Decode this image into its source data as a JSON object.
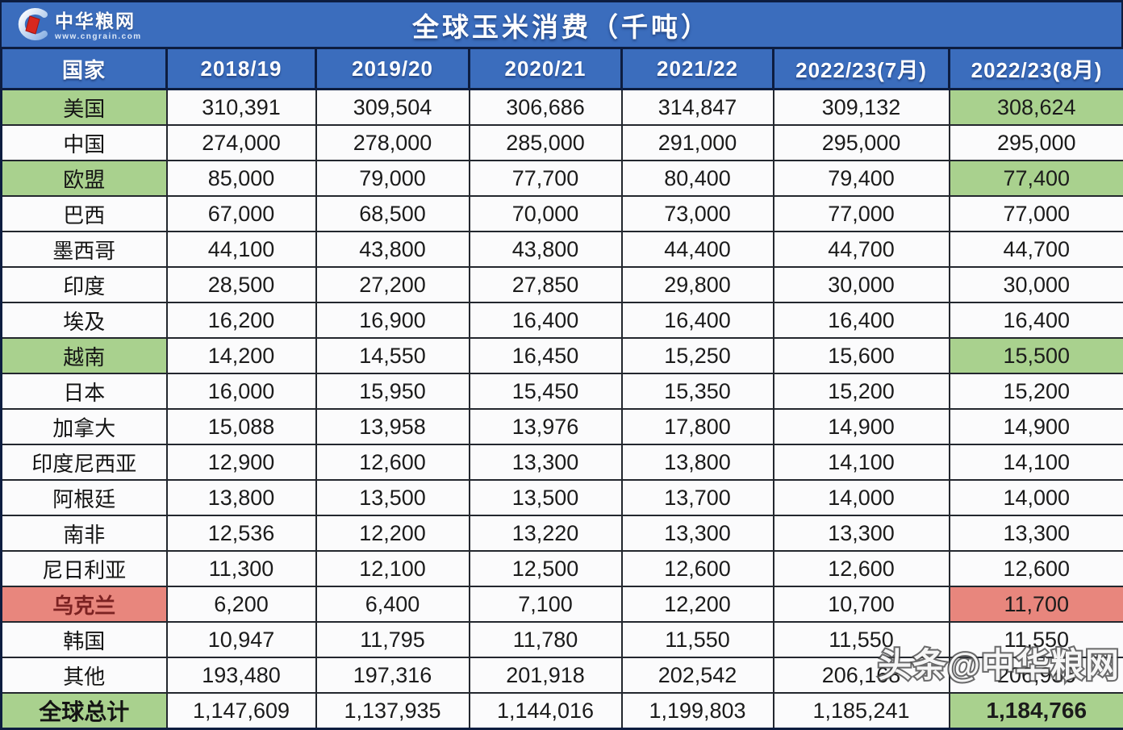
{
  "header": {
    "logo": {
      "name": "中华粮网",
      "url": "www.cngrain.com"
    },
    "title": "全球玉米消费（千吨）"
  },
  "table": {
    "columns": [
      "国家",
      "2018/19",
      "2019/20",
      "2020/21",
      "2021/22",
      "2022/23(7月)",
      "2022/23(8月)"
    ],
    "rows": [
      {
        "country": "美国",
        "highlight": "green",
        "values": [
          "310,391",
          "309,504",
          "306,686",
          "314,847",
          "309,132",
          "308,624"
        ]
      },
      {
        "country": "中国",
        "highlight": "none",
        "values": [
          "274,000",
          "278,000",
          "285,000",
          "291,000",
          "295,000",
          "295,000"
        ]
      },
      {
        "country": "欧盟",
        "highlight": "green",
        "values": [
          "85,000",
          "79,000",
          "77,700",
          "80,400",
          "79,400",
          "77,400"
        ]
      },
      {
        "country": "巴西",
        "highlight": "none",
        "values": [
          "67,000",
          "68,500",
          "70,000",
          "73,000",
          "77,000",
          "77,000"
        ]
      },
      {
        "country": "墨西哥",
        "highlight": "none",
        "values": [
          "44,100",
          "43,800",
          "43,800",
          "44,400",
          "44,700",
          "44,700"
        ]
      },
      {
        "country": "印度",
        "highlight": "none",
        "values": [
          "28,500",
          "27,200",
          "27,850",
          "29,800",
          "30,000",
          "30,000"
        ]
      },
      {
        "country": "埃及",
        "highlight": "none",
        "values": [
          "16,200",
          "16,900",
          "16,400",
          "16,400",
          "16,400",
          "16,400"
        ]
      },
      {
        "country": "越南",
        "highlight": "green",
        "values": [
          "14,200",
          "14,550",
          "16,450",
          "15,250",
          "15,600",
          "15,500"
        ]
      },
      {
        "country": "日本",
        "highlight": "none",
        "values": [
          "16,000",
          "15,950",
          "15,450",
          "15,350",
          "15,200",
          "15,200"
        ]
      },
      {
        "country": "加拿大",
        "highlight": "none",
        "values": [
          "15,088",
          "13,958",
          "13,976",
          "17,800",
          "14,900",
          "14,900"
        ]
      },
      {
        "country": "印度尼西亚",
        "highlight": "none",
        "values": [
          "12,900",
          "12,600",
          "13,300",
          "13,800",
          "14,100",
          "14,100"
        ]
      },
      {
        "country": "阿根廷",
        "highlight": "none",
        "values": [
          "13,800",
          "13,500",
          "13,500",
          "13,700",
          "14,000",
          "14,000"
        ]
      },
      {
        "country": "南非",
        "highlight": "none",
        "values": [
          "12,536",
          "12,200",
          "13,220",
          "13,300",
          "13,300",
          "13,300"
        ]
      },
      {
        "country": "尼日利亚",
        "highlight": "none",
        "values": [
          "11,300",
          "12,100",
          "12,500",
          "12,600",
          "12,600",
          "12,600"
        ]
      },
      {
        "country": "乌克兰",
        "highlight": "red",
        "values": [
          "6,200",
          "6,400",
          "7,100",
          "12,200",
          "10,700",
          "11,700"
        ]
      },
      {
        "country": "韩国",
        "highlight": "none",
        "values": [
          "10,947",
          "11,795",
          "11,780",
          "11,550",
          "11,550",
          "11,550"
        ]
      },
      {
        "country": "其他",
        "highlight": "none",
        "values": [
          "193,480",
          "197,316",
          "201,918",
          "202,542",
          "206,168",
          "206,956"
        ]
      },
      {
        "country": "全球总计",
        "highlight": "green",
        "bold": true,
        "values": [
          "1,147,609",
          "1,137,935",
          "1,144,016",
          "1,199,803",
          "1,185,241",
          "1,184,766"
        ]
      }
    ]
  },
  "watermark": "头条@中华粮网",
  "colors": {
    "header_blue": "#3b6dbd",
    "green": "#a9d18e",
    "red": "#e8867d",
    "border_navy": "#0d1d40"
  },
  "chart_data": {
    "type": "table",
    "title": "全球玉米消费（千吨）",
    "unit": "千吨",
    "columns": [
      "国家",
      "2018/19",
      "2019/20",
      "2020/21",
      "2021/22",
      "2022/23(7月)",
      "2022/23(8月)"
    ],
    "rows": [
      [
        "美国",
        310391,
        309504,
        306686,
        314847,
        309132,
        308624
      ],
      [
        "中国",
        274000,
        278000,
        285000,
        291000,
        295000,
        295000
      ],
      [
        "欧盟",
        85000,
        79000,
        77700,
        80400,
        79400,
        77400
      ],
      [
        "巴西",
        67000,
        68500,
        70000,
        73000,
        77000,
        77000
      ],
      [
        "墨西哥",
        44100,
        43800,
        43800,
        44400,
        44700,
        44700
      ],
      [
        "印度",
        28500,
        27200,
        27850,
        29800,
        30000,
        30000
      ],
      [
        "埃及",
        16200,
        16900,
        16400,
        16400,
        16400,
        16400
      ],
      [
        "越南",
        14200,
        14550,
        16450,
        15250,
        15600,
        15500
      ],
      [
        "日本",
        16000,
        15950,
        15450,
        15350,
        15200,
        15200
      ],
      [
        "加拿大",
        15088,
        13958,
        13976,
        17800,
        14900,
        14900
      ],
      [
        "印度尼西亚",
        12900,
        12600,
        13300,
        13800,
        14100,
        14100
      ],
      [
        "阿根廷",
        13800,
        13500,
        13500,
        13700,
        14000,
        14000
      ],
      [
        "南非",
        12536,
        12200,
        13220,
        13300,
        13300,
        13300
      ],
      [
        "尼日利亚",
        11300,
        12100,
        12500,
        12600,
        12600,
        12600
      ],
      [
        "乌克兰",
        6200,
        6400,
        7100,
        12200,
        10700,
        11700
      ],
      [
        "韩国",
        10947,
        11795,
        11780,
        11550,
        11550,
        11550
      ],
      [
        "其他",
        193480,
        197316,
        201918,
        202542,
        206168,
        206956
      ],
      [
        "全球总计",
        1147609,
        1137935,
        1144016,
        1199803,
        1185241,
        1184766
      ]
    ],
    "highlight_notes": "绿色高亮: 美国/欧盟/越南/全球总计 的国家列与2022/23(8月)列; 红色高亮: 乌克兰"
  }
}
